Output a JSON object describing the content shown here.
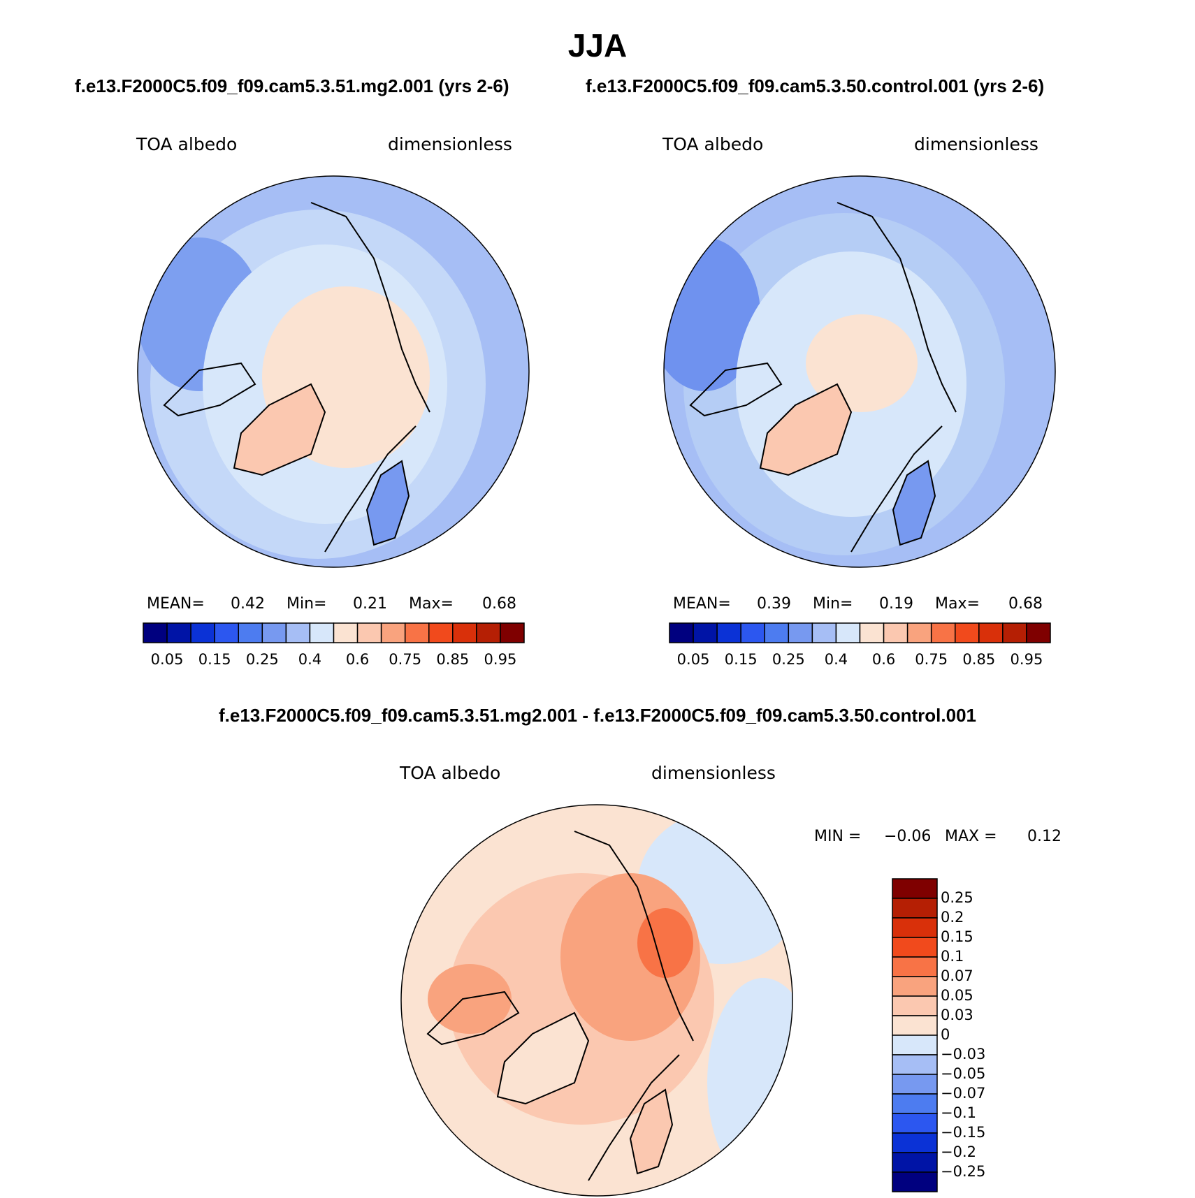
{
  "title": "JJA",
  "panels": [
    {
      "id": "mg2",
      "run_title": "f.e13.F2000C5.f09_f09.cam5.3.51.mg2.001 (yrs 2-6)",
      "variable": "TOA albedo",
      "units": "dimensionless",
      "mean_label": "MEAN=",
      "mean_value": "0.42",
      "min_label": "Min=",
      "min_value": "0.21",
      "max_label": "Max=",
      "max_value": "0.68"
    },
    {
      "id": "control",
      "run_title": "f.e13.F2000C5.f09_f09.cam5.3.50.control.001 (yrs 2-6)",
      "variable": "TOA albedo",
      "units": "dimensionless",
      "mean_label": "MEAN=",
      "mean_value": "0.39",
      "min_label": "Min=",
      "min_value": "0.19",
      "max_label": "Max=",
      "max_value": "0.68"
    }
  ],
  "diff_panel": {
    "run_title": "f.e13.F2000C5.f09_f09.cam5.3.51.mg2.001 - f.e13.F2000C5.f09_f09.cam5.3.50.control.001",
    "variable": "TOA albedo",
    "units": "dimensionless",
    "min_label": "MIN =",
    "min_value": "−0.06",
    "max_label": "MAX =",
    "max_value": "0.12"
  },
  "colorbar_abs": {
    "colors": [
      "#00007f",
      "#0014a6",
      "#0b32d6",
      "#2c57f0",
      "#4d7cf0",
      "#7799f0",
      "#a6bef5",
      "#d7e7fa",
      "#fbe3d2",
      "#fbc8b0",
      "#f9a37e",
      "#f87346",
      "#f14a1c",
      "#d9300a",
      "#b51f04",
      "#7f0000"
    ],
    "tick_labels": [
      "0.05",
      "0.15",
      "0.25",
      "0.4",
      "0.6",
      "0.75",
      "0.85",
      "0.95"
    ]
  },
  "colorbar_diff": {
    "colors_top_to_bottom": [
      "#7f0000",
      "#b51f04",
      "#d9300a",
      "#f14a1c",
      "#f87346",
      "#f9a37e",
      "#fbc8b0",
      "#fbe3d2",
      "#d7e7fa",
      "#a6bef5",
      "#7799f0",
      "#4d7cf0",
      "#2c57f0",
      "#0b32d6",
      "#0014a6",
      "#00007f"
    ],
    "tick_labels_top_to_bottom": [
      "0.25",
      "0.2",
      "0.15",
      "0.1",
      "0.07",
      "0.05",
      "0.03",
      "0",
      "−0.03",
      "−0.05",
      "−0.07",
      "−0.1",
      "−0.15",
      "−0.2",
      "−0.25"
    ]
  }
}
